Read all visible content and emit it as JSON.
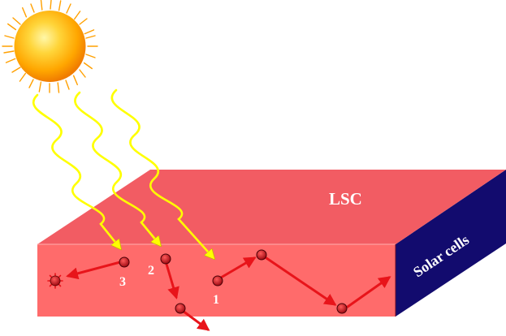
{
  "diagram": {
    "slab_label": "LSC",
    "edge_label": "Solar cells",
    "photon_labels": [
      "1",
      "2",
      "3"
    ]
  },
  "colors": {
    "slab_front": "#ff6b6b",
    "slab_top": "#f25c63",
    "slab_edge": "#120b6e",
    "sunlight": "#ffff00",
    "emission": "#e8141a",
    "particle": "#c8141e",
    "sun_core": "#ffb000",
    "label_text": "#ffffff"
  }
}
